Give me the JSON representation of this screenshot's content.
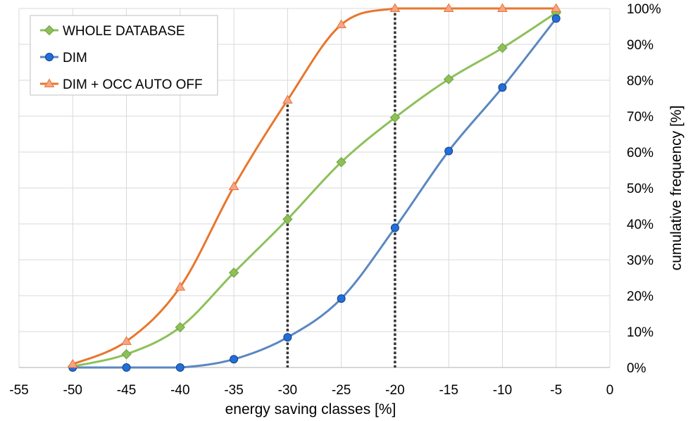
{
  "chart_data": {
    "type": "line",
    "xlabel": "energy saving classes  [%]",
    "ylabel": "cumulative frequency  [%]",
    "xlim": [
      -55,
      0
    ],
    "ylim": [
      0,
      100
    ],
    "x_ticks": [
      "-55",
      "-50",
      "-45",
      "-40",
      "-35",
      "-30",
      "-25",
      "-20",
      "-15",
      "-10",
      "-5",
      "0"
    ],
    "y_ticks": [
      "0%",
      "10%",
      "20%",
      "30%",
      "40%",
      "50%",
      "60%",
      "70%",
      "80%",
      "90%",
      "100%"
    ],
    "grid": true,
    "legend_position": "top-left",
    "y_axis_side": "right",
    "x": [
      -50,
      -45,
      -40,
      -35,
      -30,
      -25,
      -20,
      -15,
      -10,
      -5
    ],
    "series": [
      {
        "name": "WHOLE DATABASE",
        "color": "#8dc05a",
        "marker": "diamond",
        "values": [
          0.3,
          3.7,
          11.2,
          26.4,
          41.3,
          57.2,
          69.6,
          80.3,
          89.0,
          98.8
        ]
      },
      {
        "name": "DIM",
        "color": "#5b87c0",
        "marker_color": "#1f6fe0",
        "marker": "circle",
        "values": [
          0,
          0,
          0,
          2.3,
          8.4,
          19.2,
          38.9,
          60.3,
          78.0,
          97.2
        ]
      },
      {
        "name": "DIM + OCC AUTO OFF",
        "color": "#e8762d",
        "marker_color": "#f4a58a",
        "marker": "triangle",
        "values": [
          0.9,
          7.3,
          22.4,
          50.4,
          74.5,
          95.5,
          100,
          100,
          100,
          100
        ]
      }
    ],
    "reference_lines_x": [
      -30,
      -20
    ]
  }
}
